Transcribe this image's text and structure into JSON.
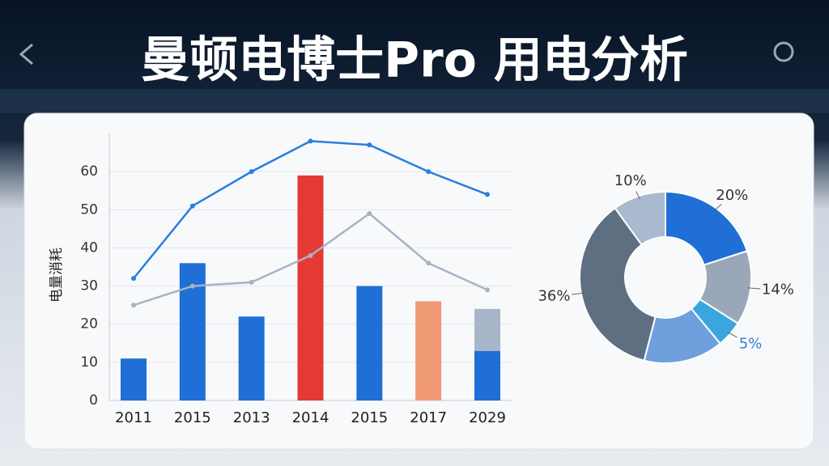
{
  "header": {
    "title": "曼顿电博士Pro 用电分析"
  },
  "chart_data": [
    {
      "type": "bar",
      "y_label": "电量消耗",
      "categories": [
        "2011",
        "2015",
        "2013",
        "2014",
        "2015",
        "2017",
        "2029"
      ],
      "series": [
        {
          "values": [
            11,
            36,
            22,
            59,
            30,
            26,
            13
          ],
          "colors": [
            "#1f6fd6",
            "#1f6fd6",
            "#1f6fd6",
            "#e53935",
            "#1f6fd6",
            "#ef9a74",
            "#1f6fd6"
          ]
        },
        {
          "values": [
            null,
            null,
            null,
            null,
            null,
            null,
            11
          ],
          "color": "#a9b6c9"
        }
      ],
      "lines": [
        {
          "values": [
            32,
            51,
            60,
            68,
            67,
            60,
            54
          ],
          "color": "#2a7de1"
        },
        {
          "values": [
            25,
            30,
            31,
            38,
            49,
            36,
            29
          ],
          "color": "#a7b3c6"
        }
      ],
      "ylim": [
        0,
        70
      ],
      "yticks": [
        0,
        10,
        20,
        30,
        40,
        50,
        60
      ],
      "grid": true
    },
    {
      "type": "pie",
      "values": [
        20,
        14,
        5,
        15,
        36,
        10
      ],
      "labels": [
        "20%",
        "14%",
        "5%",
        null,
        "36%",
        "10%"
      ],
      "colors": [
        "#1f6fd6",
        "#9aa7b8",
        "#3aa6e0",
        "#6f9fdc",
        "#5f6f82",
        "#a9b9cf"
      ],
      "label_colors": [
        "#333333",
        "#333333",
        "#3a7bd5",
        null,
        "#333333",
        "#333333"
      ]
    }
  ]
}
